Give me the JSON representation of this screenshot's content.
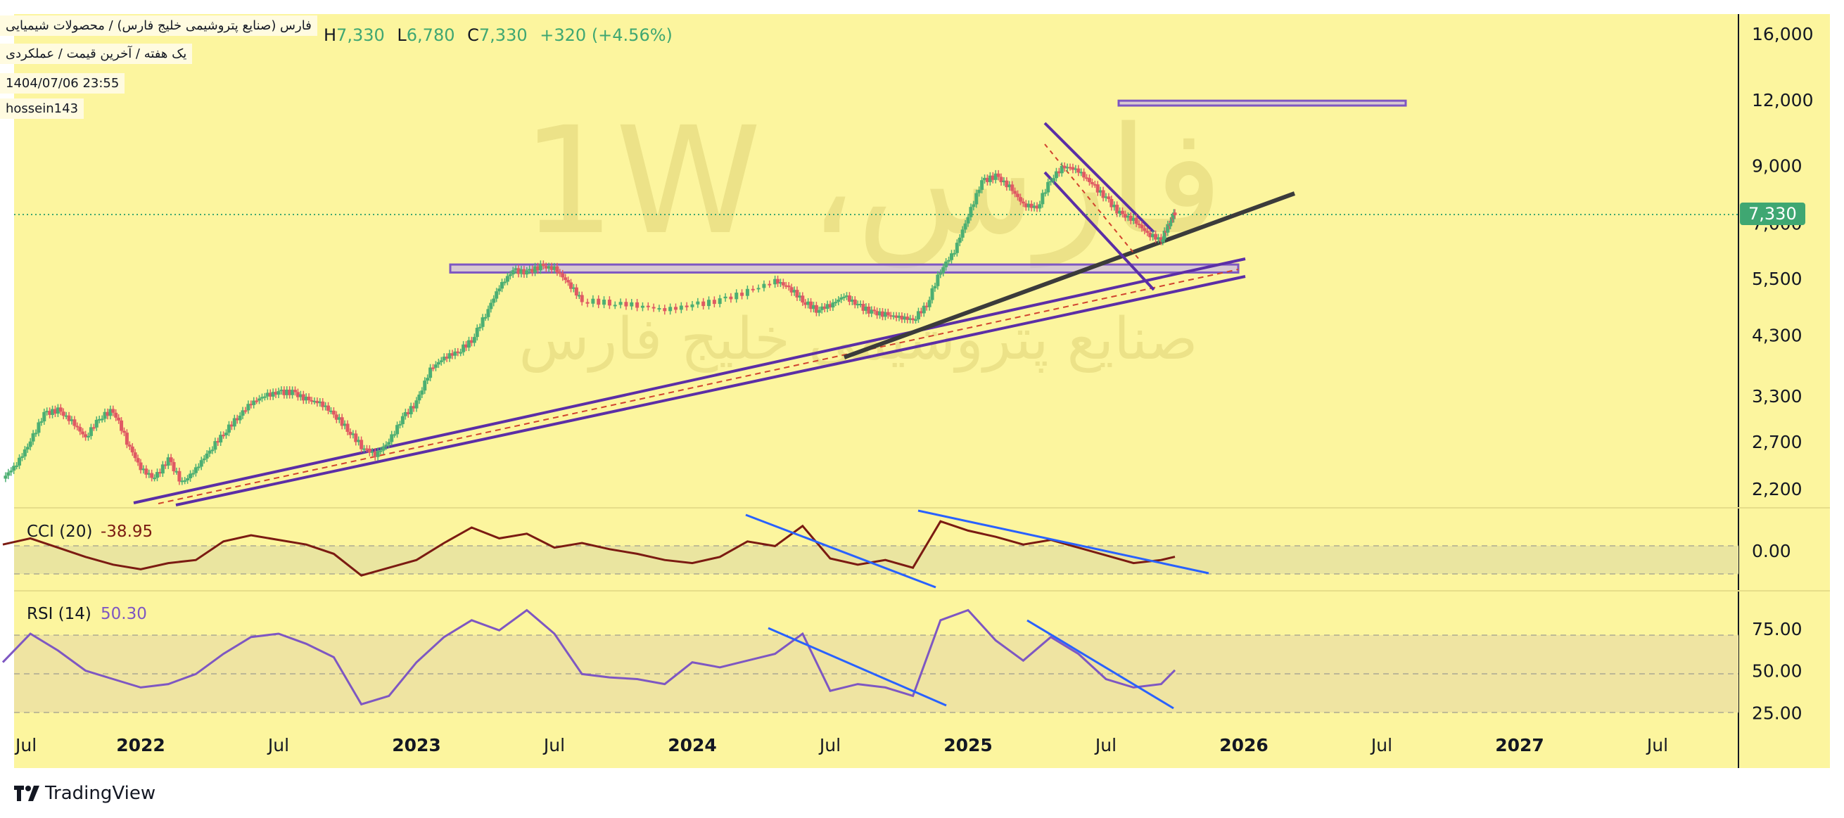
{
  "header": {
    "symbol_title": "فارس (صنایع پتروشیمی خلیج فارس) / محصولات شیمیایی",
    "subtitle": "یک هفته / آخرین قیمت / عملکردی",
    "datetime": "1404/07/06 23:55",
    "author": "hossein143",
    "ohlc": {
      "h_label": "H",
      "h_value": "7,330",
      "l_label": "L",
      "l_value": "6,780",
      "c_label": "C",
      "c_value": "7,330",
      "change": "+320 (+4.56%)"
    }
  },
  "watermark": {
    "ticker": "فارس، 1W",
    "name": "صنایع پتروشیمی خلیج فارس"
  },
  "price_tag": "7,330",
  "brand": {
    "name": "TradingView"
  },
  "colors": {
    "background": "#fcf59e",
    "up": "#4caf72",
    "down": "#e05a63",
    "trendline": "#5b2ea6",
    "blue_line": "#2962ff",
    "cci_line": "#7b1b12",
    "rsi_line": "#7e57c2",
    "zone_fill": "#c9b7e8",
    "price_tag": "#3fa772"
  },
  "chart_data": [
    {
      "type": "candlestick",
      "title": "",
      "scale": "log",
      "x_axis_ticks": [
        "Jul",
        "2022",
        "Jul",
        "2023",
        "Jul",
        "2024",
        "Jul",
        "2025",
        "Jul",
        "2026",
        "Jul",
        "2027",
        "Jul"
      ],
      "y_axis_ticks": [
        "16,000",
        "12,000",
        "9,000",
        "7,000",
        "5,500",
        "4,300",
        "3,300",
        "2,700",
        "2,200"
      ],
      "ylim": [
        1950,
        16500
      ],
      "last_close": 7330,
      "resistance_zones": [
        [
          5650,
          5850
        ],
        [
          11700,
          11950
        ]
      ],
      "weekly_close_path": [
        {
          "x": 2021.5,
          "y": 2300
        },
        {
          "x": 2021.55,
          "y": 2450
        },
        {
          "x": 2021.6,
          "y": 2700
        },
        {
          "x": 2021.65,
          "y": 3050
        },
        {
          "x": 2021.7,
          "y": 3100
        },
        {
          "x": 2021.75,
          "y": 2950
        },
        {
          "x": 2021.8,
          "y": 2750
        },
        {
          "x": 2021.85,
          "y": 3000
        },
        {
          "x": 2021.9,
          "y": 3100
        },
        {
          "x": 2021.95,
          "y": 2700
        },
        {
          "x": 2022.0,
          "y": 2400
        },
        {
          "x": 2022.05,
          "y": 2300
        },
        {
          "x": 2022.1,
          "y": 2500
        },
        {
          "x": 2022.15,
          "y": 2250
        },
        {
          "x": 2022.2,
          "y": 2400
        },
        {
          "x": 2022.25,
          "y": 2600
        },
        {
          "x": 2022.3,
          "y": 2800
        },
        {
          "x": 2022.35,
          "y": 3000
        },
        {
          "x": 2022.4,
          "y": 3200
        },
        {
          "x": 2022.45,
          "y": 3300
        },
        {
          "x": 2022.5,
          "y": 3350
        },
        {
          "x": 2022.55,
          "y": 3350
        },
        {
          "x": 2022.6,
          "y": 3250
        },
        {
          "x": 2022.65,
          "y": 3200
        },
        {
          "x": 2022.7,
          "y": 3050
        },
        {
          "x": 2022.75,
          "y": 2850
        },
        {
          "x": 2022.8,
          "y": 2650
        },
        {
          "x": 2022.85,
          "y": 2550
        },
        {
          "x": 2022.9,
          "y": 2700
        },
        {
          "x": 2022.95,
          "y": 3000
        },
        {
          "x": 2023.0,
          "y": 3200
        },
        {
          "x": 2023.05,
          "y": 3700
        },
        {
          "x": 2023.1,
          "y": 3900
        },
        {
          "x": 2023.15,
          "y": 4000
        },
        {
          "x": 2023.2,
          "y": 4200
        },
        {
          "x": 2023.25,
          "y": 4700
        },
        {
          "x": 2023.3,
          "y": 5300
        },
        {
          "x": 2023.35,
          "y": 5700
        },
        {
          "x": 2023.4,
          "y": 5650
        },
        {
          "x": 2023.45,
          "y": 5800
        },
        {
          "x": 2023.5,
          "y": 5750
        },
        {
          "x": 2023.55,
          "y": 5400
        },
        {
          "x": 2023.6,
          "y": 5000
        },
        {
          "x": 2023.7,
          "y": 4950
        },
        {
          "x": 2023.8,
          "y": 4900
        },
        {
          "x": 2023.9,
          "y": 4800
        },
        {
          "x": 2024.0,
          "y": 4900
        },
        {
          "x": 2024.1,
          "y": 5000
        },
        {
          "x": 2024.2,
          "y": 5200
        },
        {
          "x": 2024.3,
          "y": 5450
        },
        {
          "x": 2024.35,
          "y": 5300
        },
        {
          "x": 2024.4,
          "y": 5000
        },
        {
          "x": 2024.45,
          "y": 4800
        },
        {
          "x": 2024.5,
          "y": 4900
        },
        {
          "x": 2024.55,
          "y": 5100
        },
        {
          "x": 2024.6,
          "y": 4900
        },
        {
          "x": 2024.65,
          "y": 4750
        },
        {
          "x": 2024.7,
          "y": 4700
        },
        {
          "x": 2024.75,
          "y": 4650
        },
        {
          "x": 2024.8,
          "y": 4600
        },
        {
          "x": 2024.85,
          "y": 4900
        },
        {
          "x": 2024.9,
          "y": 5700
        },
        {
          "x": 2024.95,
          "y": 6200
        },
        {
          "x": 2025.0,
          "y": 7200
        },
        {
          "x": 2025.05,
          "y": 8400
        },
        {
          "x": 2025.1,
          "y": 8600
        },
        {
          "x": 2025.15,
          "y": 8200
        },
        {
          "x": 2025.2,
          "y": 7600
        },
        {
          "x": 2025.25,
          "y": 7500
        },
        {
          "x": 2025.3,
          "y": 8500
        },
        {
          "x": 2025.35,
          "y": 9000
        },
        {
          "x": 2025.4,
          "y": 8800
        },
        {
          "x": 2025.45,
          "y": 8300
        },
        {
          "x": 2025.5,
          "y": 7800
        },
        {
          "x": 2025.55,
          "y": 7300
        },
        {
          "x": 2025.6,
          "y": 7100
        },
        {
          "x": 2025.65,
          "y": 6700
        },
        {
          "x": 2025.7,
          "y": 6500
        },
        {
          "x": 2025.73,
          "y": 7000
        },
        {
          "x": 2025.75,
          "y": 7330
        }
      ]
    },
    {
      "type": "line",
      "title": "CCI (20)",
      "last_value": "-38.95",
      "y_axis_ticks": [
        "0.00"
      ],
      "ylim": [
        -250,
        250
      ],
      "series": [
        {
          "name": "CCI (20)",
          "points": [
            {
              "x": 2021.5,
              "y": 40
            },
            {
              "x": 2021.6,
              "y": 80
            },
            {
              "x": 2021.7,
              "y": 20
            },
            {
              "x": 2021.8,
              "y": -40
            },
            {
              "x": 2021.9,
              "y": -90
            },
            {
              "x": 2022.0,
              "y": -120
            },
            {
              "x": 2022.1,
              "y": -80
            },
            {
              "x": 2022.2,
              "y": -60
            },
            {
              "x": 2022.3,
              "y": 60
            },
            {
              "x": 2022.4,
              "y": 100
            },
            {
              "x": 2022.5,
              "y": 70
            },
            {
              "x": 2022.6,
              "y": 40
            },
            {
              "x": 2022.7,
              "y": -20
            },
            {
              "x": 2022.8,
              "y": -160
            },
            {
              "x": 2022.9,
              "y": -110
            },
            {
              "x": 2023.0,
              "y": -60
            },
            {
              "x": 2023.1,
              "y": 50
            },
            {
              "x": 2023.2,
              "y": 150
            },
            {
              "x": 2023.3,
              "y": 80
            },
            {
              "x": 2023.4,
              "y": 110
            },
            {
              "x": 2023.5,
              "y": 20
            },
            {
              "x": 2023.6,
              "y": 50
            },
            {
              "x": 2023.7,
              "y": 10
            },
            {
              "x": 2023.8,
              "y": -20
            },
            {
              "x": 2023.9,
              "y": -60
            },
            {
              "x": 2024.0,
              "y": -80
            },
            {
              "x": 2024.1,
              "y": -40
            },
            {
              "x": 2024.2,
              "y": 60
            },
            {
              "x": 2024.3,
              "y": 30
            },
            {
              "x": 2024.4,
              "y": 160
            },
            {
              "x": 2024.5,
              "y": -50
            },
            {
              "x": 2024.6,
              "y": -90
            },
            {
              "x": 2024.7,
              "y": -60
            },
            {
              "x": 2024.8,
              "y": -110
            },
            {
              "x": 2024.9,
              "y": 190
            },
            {
              "x": 2025.0,
              "y": 130
            },
            {
              "x": 2025.1,
              "y": 90
            },
            {
              "x": 2025.2,
              "y": 40
            },
            {
              "x": 2025.3,
              "y": 70
            },
            {
              "x": 2025.4,
              "y": 20
            },
            {
              "x": 2025.5,
              "y": -30
            },
            {
              "x": 2025.6,
              "y": -80
            },
            {
              "x": 2025.7,
              "y": -60
            },
            {
              "x": 2025.75,
              "y": -38.95
            }
          ]
        }
      ]
    },
    {
      "type": "line",
      "title": "RSI (14)",
      "last_value": "50.30",
      "y_axis_ticks": [
        "75.00",
        "50.00",
        "25.00"
      ],
      "ylim": [
        18,
        95
      ],
      "series": [
        {
          "name": "RSI (14)",
          "points": [
            {
              "x": 2021.5,
              "y": 55
            },
            {
              "x": 2021.6,
              "y": 72
            },
            {
              "x": 2021.7,
              "y": 62
            },
            {
              "x": 2021.8,
              "y": 50
            },
            {
              "x": 2021.9,
              "y": 45
            },
            {
              "x": 2022.0,
              "y": 40
            },
            {
              "x": 2022.1,
              "y": 42
            },
            {
              "x": 2022.2,
              "y": 48
            },
            {
              "x": 2022.3,
              "y": 60
            },
            {
              "x": 2022.4,
              "y": 70
            },
            {
              "x": 2022.5,
              "y": 72
            },
            {
              "x": 2022.6,
              "y": 66
            },
            {
              "x": 2022.7,
              "y": 58
            },
            {
              "x": 2022.8,
              "y": 30
            },
            {
              "x": 2022.9,
              "y": 35
            },
            {
              "x": 2023.0,
              "y": 55
            },
            {
              "x": 2023.1,
              "y": 70
            },
            {
              "x": 2023.2,
              "y": 80
            },
            {
              "x": 2023.3,
              "y": 74
            },
            {
              "x": 2023.4,
              "y": 86
            },
            {
              "x": 2023.5,
              "y": 72
            },
            {
              "x": 2023.6,
              "y": 48
            },
            {
              "x": 2023.7,
              "y": 46
            },
            {
              "x": 2023.8,
              "y": 45
            },
            {
              "x": 2023.9,
              "y": 42
            },
            {
              "x": 2024.0,
              "y": 55
            },
            {
              "x": 2024.1,
              "y": 52
            },
            {
              "x": 2024.2,
              "y": 56
            },
            {
              "x": 2024.3,
              "y": 60
            },
            {
              "x": 2024.4,
              "y": 72
            },
            {
              "x": 2024.5,
              "y": 38
            },
            {
              "x": 2024.6,
              "y": 42
            },
            {
              "x": 2024.7,
              "y": 40
            },
            {
              "x": 2024.8,
              "y": 35
            },
            {
              "x": 2024.9,
              "y": 80
            },
            {
              "x": 2025.0,
              "y": 86
            },
            {
              "x": 2025.1,
              "y": 68
            },
            {
              "x": 2025.2,
              "y": 56
            },
            {
              "x": 2025.3,
              "y": 70
            },
            {
              "x": 2025.4,
              "y": 60
            },
            {
              "x": 2025.5,
              "y": 45
            },
            {
              "x": 2025.6,
              "y": 40
            },
            {
              "x": 2025.7,
              "y": 42
            },
            {
              "x": 2025.75,
              "y": 50.3
            }
          ]
        }
      ]
    }
  ]
}
